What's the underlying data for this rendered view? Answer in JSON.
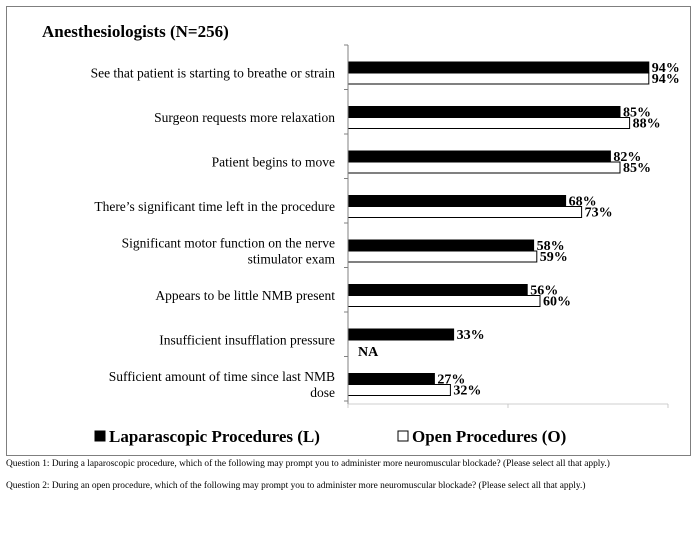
{
  "chart_data": {
    "type": "bar",
    "orientation": "horizontal",
    "title": "Anesthesiologists (N=256)",
    "categories": [
      [
        "See that patient is starting to breathe or strain"
      ],
      [
        "Surgeon requests more relaxation"
      ],
      [
        "Patient begins to move"
      ],
      [
        "There’s significant time left in the procedure"
      ],
      [
        "Significant motor function on the nerve",
        "stimulator exam"
      ],
      [
        "Appears to be little NMB present"
      ],
      [
        "Insufficient insufflation pressure"
      ],
      [
        "Sufficient amount of time since last NMB",
        "dose"
      ]
    ],
    "series": [
      {
        "name": "Laparascopic Procedures (L)",
        "color": "#000000",
        "values": [
          94,
          85,
          82,
          68,
          58,
          56,
          33,
          27
        ],
        "labels": [
          "94%",
          "85%",
          "82%",
          "68%",
          "58%",
          "56%",
          "33%",
          "27%"
        ]
      },
      {
        "name": "Open Procedures (O)",
        "color": "#ffffff",
        "values": [
          94,
          88,
          85,
          73,
          59,
          60,
          null,
          32
        ],
        "labels": [
          "94%",
          "88%",
          "85%",
          "73%",
          "59%",
          "60%",
          "NA",
          "32%"
        ]
      }
    ],
    "xlim": [
      0,
      100
    ],
    "xlabel": "",
    "ylabel": "",
    "grid": false,
    "legend_position": "bottom"
  },
  "footnotes": {
    "q1": "Question 1: During a laparoscopic procedure, which of the following may prompt you to administer more neuromuscular blockade? (Please select all that apply.)",
    "q2": "Question 2: During an open procedure, which of the following may prompt you to administer more neuromuscular blockade? (Please select all that apply.)"
  }
}
